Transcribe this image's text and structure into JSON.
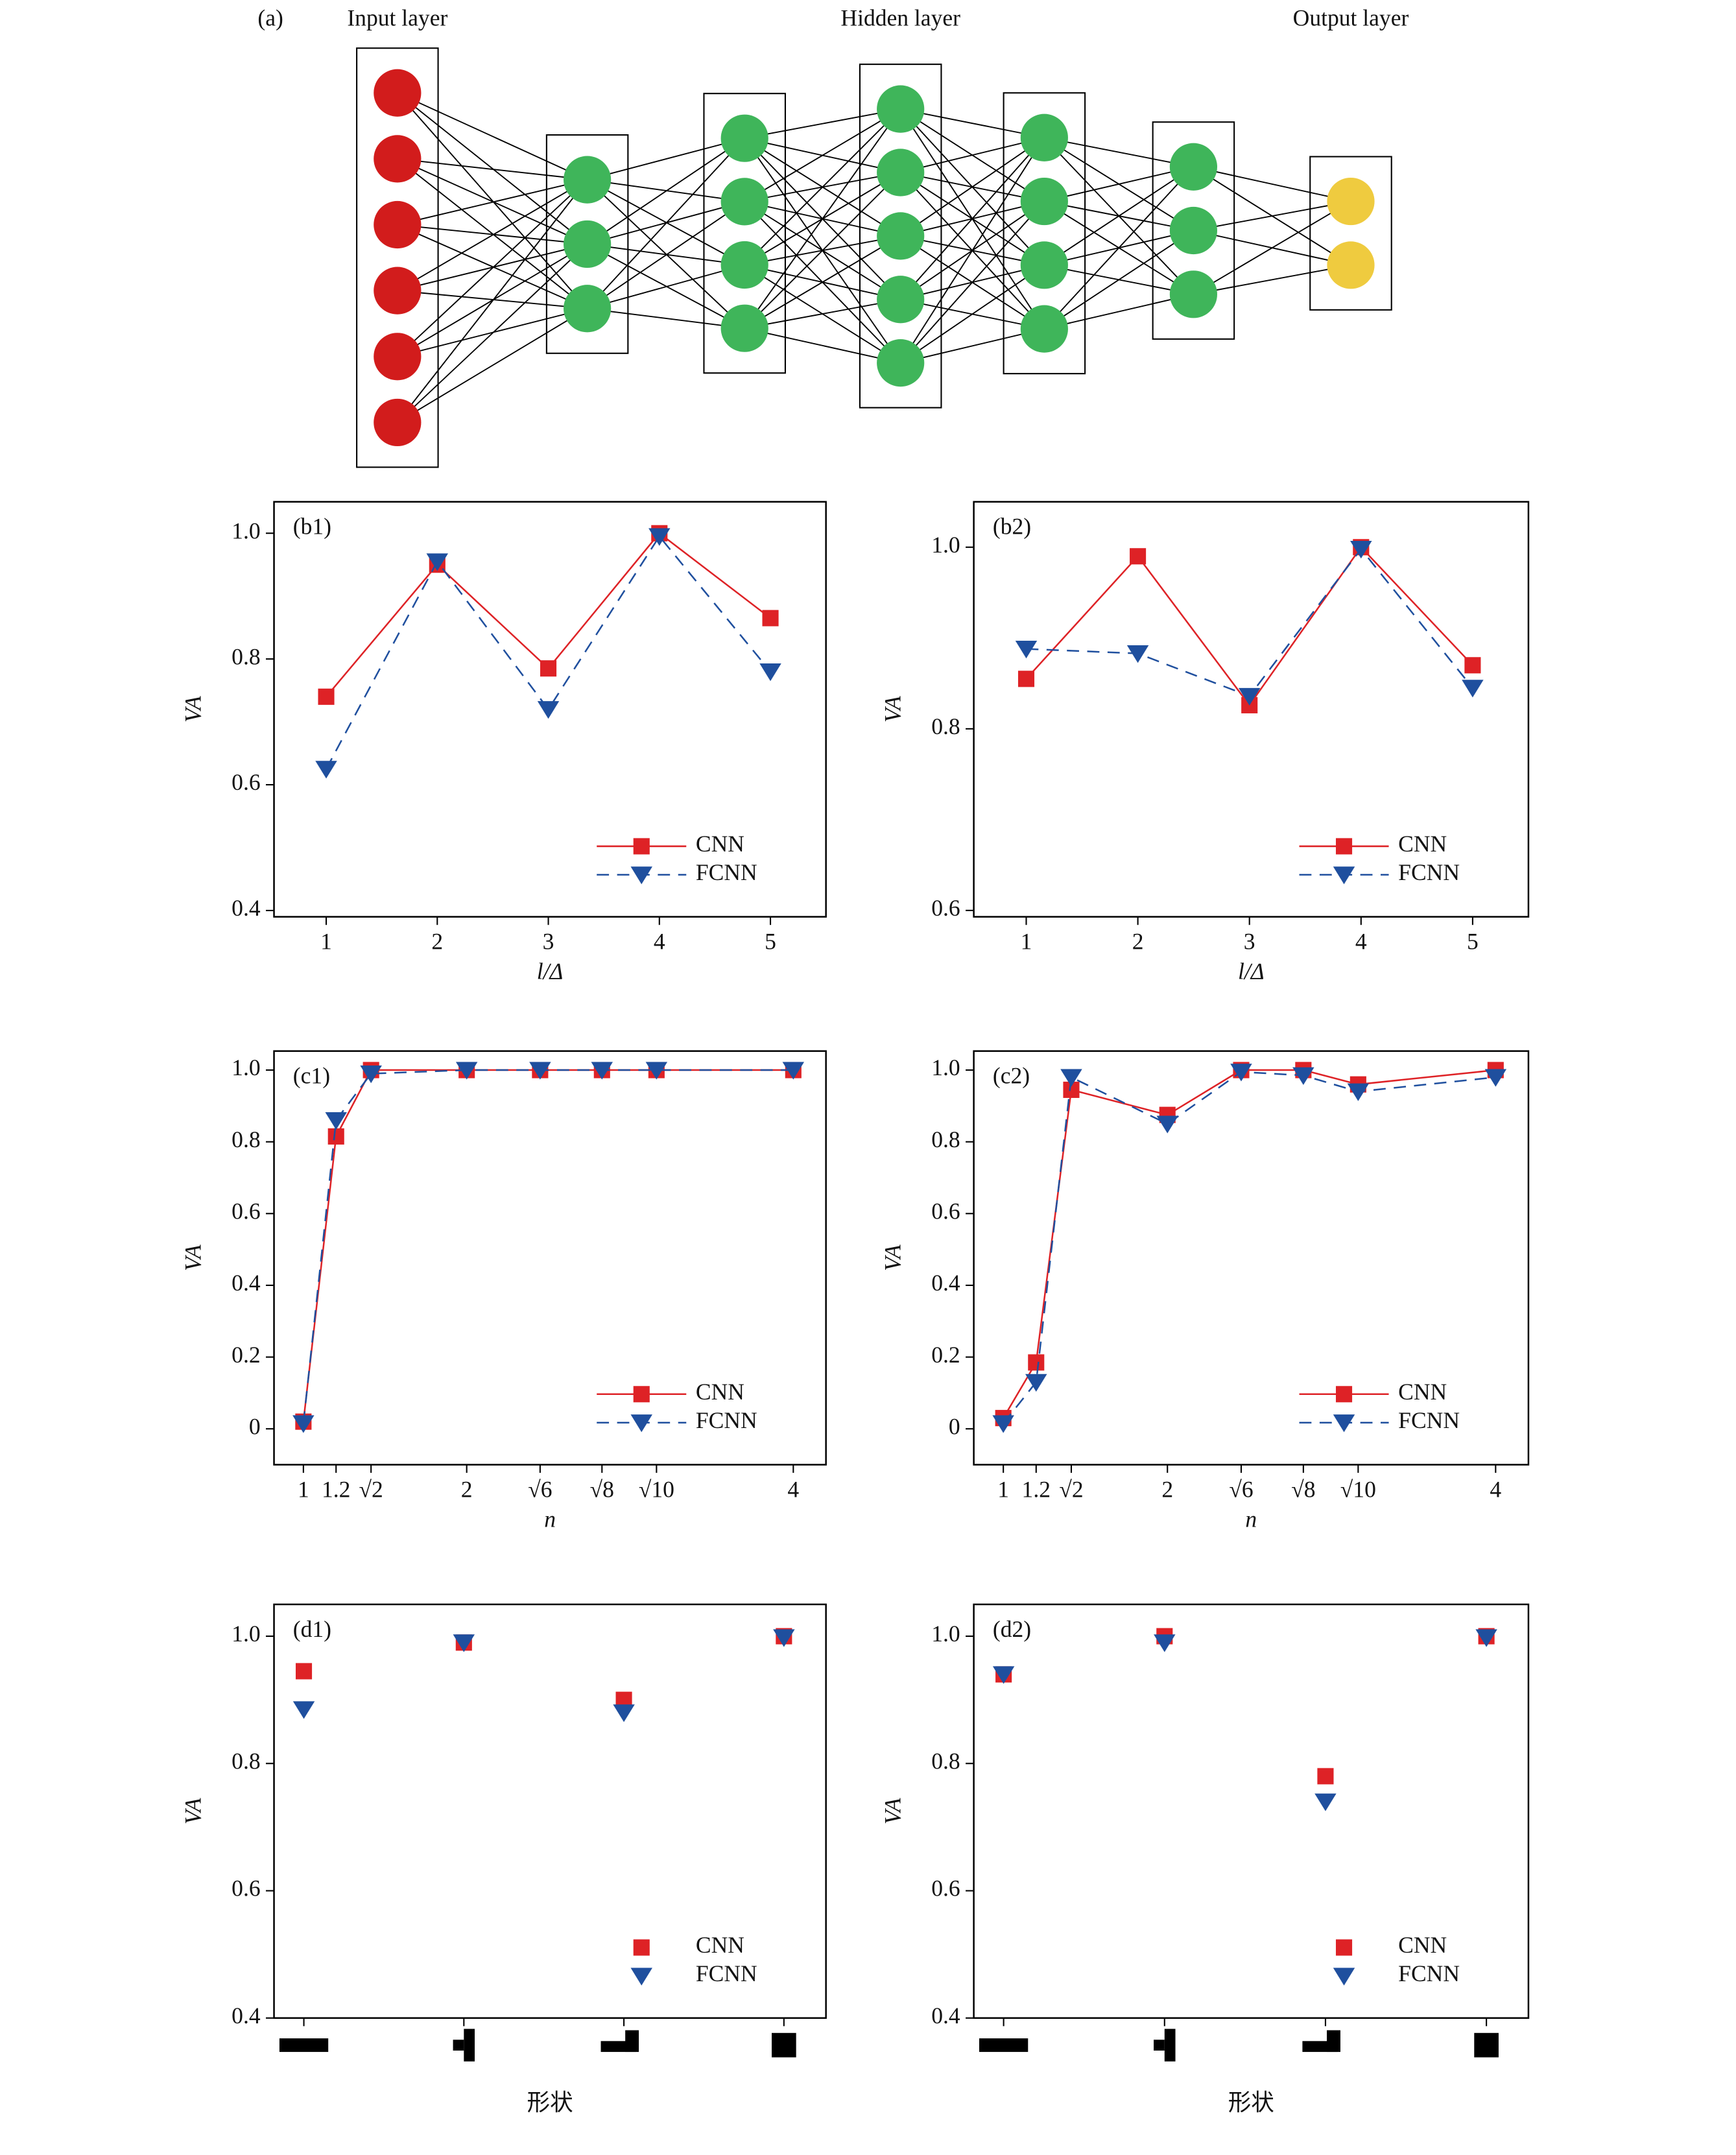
{
  "chart_data": [
    {
      "type": "network",
      "label": "(a)",
      "layer_titles": [
        "Input layer",
        "Hidden layer",
        "Output layer"
      ],
      "layers": [
        6,
        3,
        4,
        5,
        4,
        3,
        2
      ],
      "colors": [
        "#d21c1c",
        "#3fb55a",
        "#3fb55a",
        "#3fb55a",
        "#3fb55a",
        "#3fb55a",
        "#efcb3f"
      ]
    },
    {
      "type": "line",
      "label": "(b1)",
      "xlabel": "l/Δ",
      "ylabel": "VA",
      "x": [
        1,
        2,
        3,
        4,
        5
      ],
      "xlim": [
        0.53,
        5.5
      ],
      "xticks": [
        1,
        2,
        3,
        4,
        5
      ],
      "ylim": [
        0.39,
        1.05
      ],
      "yticks": [
        0.4,
        0.6,
        0.8,
        {
          "value": 1,
          "label": "1.0"
        }
      ],
      "legend": "lower right",
      "series": [
        {
          "name": "CNN",
          "color": "#de2226",
          "marker": "square",
          "linestyle": "solid",
          "values": [
            0.74,
            0.95,
            0.785,
            1.0,
            0.865
          ]
        },
        {
          "name": "FCNN",
          "color": "#1f4f9e",
          "marker": "triangle-down",
          "linestyle": "dashed",
          "values": [
            0.625,
            0.955,
            0.72,
            0.995,
            0.78
          ]
        }
      ]
    },
    {
      "type": "line",
      "label": "(b2)",
      "xlabel": "l/Δ",
      "ylabel": "VA",
      "x": [
        1,
        2,
        3,
        4,
        5
      ],
      "xlim": [
        0.53,
        5.5
      ],
      "xticks": [
        1,
        2,
        3,
        4,
        5
      ],
      "ylim": [
        0.593,
        1.05
      ],
      "yticks": [
        0.6,
        0.8,
        {
          "value": 1,
          "label": "1.0"
        }
      ],
      "legend": "lower right",
      "series": [
        {
          "name": "CNN",
          "color": "#de2226",
          "marker": "square",
          "linestyle": "solid",
          "values": [
            0.855,
            0.99,
            0.826,
            1.0,
            0.87
          ]
        },
        {
          "name": "FCNN",
          "color": "#1f4f9e",
          "marker": "triangle-down",
          "linestyle": "dashed",
          "values": [
            0.888,
            0.883,
            0.836,
            0.998,
            0.845
          ]
        }
      ]
    },
    {
      "type": "line",
      "label": "(c1)",
      "xlabel": "n",
      "ylabel": "VA",
      "x": [
        1,
        1.2,
        1.4142,
        2,
        2.4495,
        2.8284,
        3.1623,
        4
      ],
      "xlim": [
        0.82,
        4.2
      ],
      "xticks": [
        1,
        1.2,
        {
          "value": 1.4142,
          "label": "√2"
        },
        2,
        {
          "value": 2.4495,
          "label": "√6"
        },
        {
          "value": 2.8284,
          "label": "√8"
        },
        {
          "value": 3.1623,
          "label": "√10"
        },
        4
      ],
      "ylim": [
        -0.1,
        1.053
      ],
      "yticks": [
        0,
        0.2,
        0.4,
        0.6,
        0.8,
        {
          "value": 1,
          "label": "1.0"
        }
      ],
      "legend": "lower right",
      "series": [
        {
          "name": "CNN",
          "color": "#de2226",
          "marker": "square",
          "linestyle": "solid",
          "values": [
            0.02,
            0.815,
            1.0,
            1.0,
            1.0,
            1.0,
            1.0,
            1.0
          ]
        },
        {
          "name": "FCNN",
          "color": "#1f4f9e",
          "marker": "triangle-down",
          "linestyle": "dashed",
          "values": [
            0.015,
            0.86,
            0.99,
            1.0,
            1.0,
            1.0,
            1.0,
            1.0
          ]
        }
      ]
    },
    {
      "type": "line",
      "label": "(c2)",
      "xlabel": "n",
      "ylabel": "VA",
      "x": [
        1,
        1.2,
        1.4142,
        2,
        2.4495,
        2.8284,
        3.1623,
        4
      ],
      "xlim": [
        0.82,
        4.2
      ],
      "xticks": [
        1,
        1.2,
        {
          "value": 1.4142,
          "label": "√2"
        },
        2,
        {
          "value": 2.4495,
          "label": "√6"
        },
        {
          "value": 2.8284,
          "label": "√8"
        },
        {
          "value": 3.1623,
          "label": "√10"
        },
        4
      ],
      "ylim": [
        -0.1,
        1.053
      ],
      "yticks": [
        0,
        0.2,
        0.4,
        0.6,
        0.8,
        {
          "value": 1,
          "label": "1.0"
        }
      ],
      "legend": "lower right",
      "series": [
        {
          "name": "CNN",
          "color": "#de2226",
          "marker": "square",
          "linestyle": "solid",
          "values": [
            0.03,
            0.185,
            0.945,
            0.875,
            1.0,
            1.0,
            0.96,
            1.0
          ]
        },
        {
          "name": "FCNN",
          "color": "#1f4f9e",
          "marker": "triangle-down",
          "linestyle": "dashed",
          "values": [
            0.015,
            0.13,
            0.98,
            0.85,
            0.995,
            0.985,
            0.94,
            0.98
          ]
        }
      ]
    },
    {
      "type": "scatter",
      "label": "(d1)",
      "xlabel": "形状",
      "ylabel": "VA",
      "categories": [
        null,
        null,
        null,
        null
      ],
      "ylim": [
        0.4,
        1.05
      ],
      "yticks": [
        0.4,
        0.6,
        0.8,
        {
          "value": 1,
          "label": "1.0"
        }
      ],
      "legend": "lower right",
      "series": [
        {
          "name": "CNN",
          "color": "#de2226",
          "marker": "square",
          "values": [
            0.945,
            0.99,
            0.9,
            1.0
          ]
        },
        {
          "name": "FCNN",
          "color": "#1f4f9e",
          "marker": "triangle-down",
          "values": [
            0.885,
            0.99,
            0.88,
            0.998
          ]
        }
      ]
    },
    {
      "type": "scatter",
      "label": "(d2)",
      "xlabel": "形状",
      "ylabel": "VA",
      "categories": [
        null,
        null,
        null,
        null
      ],
      "ylim": [
        0.4,
        1.05
      ],
      "yticks": [
        0.4,
        0.6,
        0.8,
        {
          "value": 1,
          "label": "1.0"
        }
      ],
      "legend": "lower right",
      "series": [
        {
          "name": "CNN",
          "color": "#de2226",
          "marker": "square",
          "values": [
            0.94,
            1.0,
            0.78,
            1.0
          ]
        },
        {
          "name": "FCNN",
          "color": "#1f4f9e",
          "marker": "triangle-down",
          "values": [
            0.94,
            0.99,
            0.74,
            0.998
          ]
        }
      ]
    }
  ]
}
